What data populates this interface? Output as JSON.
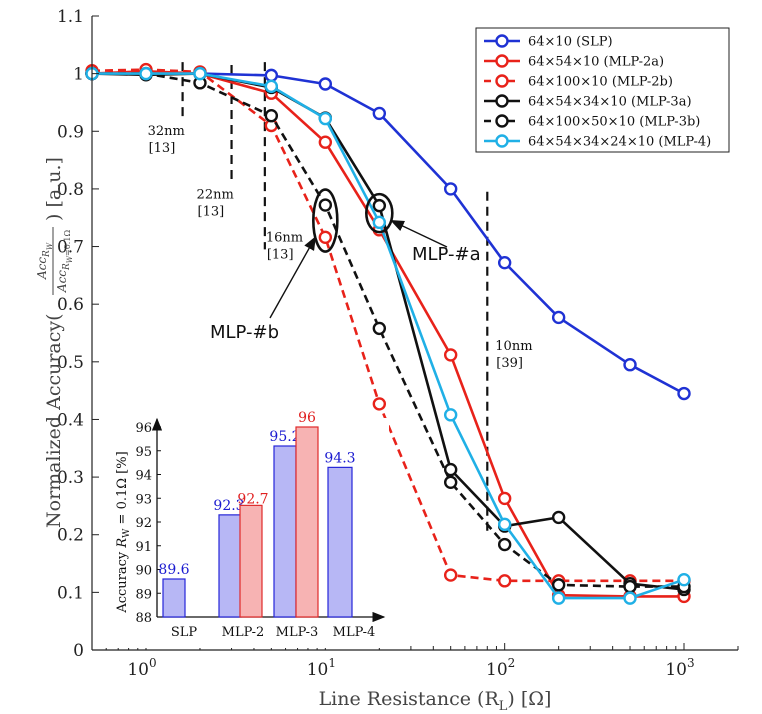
{
  "chart_data": {
    "type": "line",
    "x_scale": "log",
    "xlabel": "Line Resistance (R",
    "xlabel_sub": "L",
    "xlabel_tail": ") [Ω]",
    "ylabel_prefix": "Normalized Accuracy(",
    "ylabel_num": "Acc",
    "ylabel_num_sub": "R",
    "ylabel_num_subsub": "W",
    "ylabel_den": "Acc",
    "ylabel_den_sub": "R",
    "ylabel_den_subsub": "W",
    "ylabel_den_tail": "=0.1Ω",
    "ylabel_suffix": ") [a.u.]",
    "xlim": [
      0.5,
      2000
    ],
    "ylim": [
      0,
      1.1
    ],
    "x_ticks": [
      {
        "value": 1,
        "base": "10",
        "exp": "0"
      },
      {
        "value": 10,
        "base": "10",
        "exp": "1"
      },
      {
        "value": 100,
        "base": "10",
        "exp": "2"
      },
      {
        "value": 1000,
        "base": "10",
        "exp": "3"
      }
    ],
    "y_ticks": [
      {
        "value": 0,
        "label": "0"
      },
      {
        "value": 0.1,
        "label": "0.1"
      },
      {
        "value": 0.2,
        "label": "0.2"
      },
      {
        "value": 0.3,
        "label": "0.3"
      },
      {
        "value": 0.4,
        "label": "0.4"
      },
      {
        "value": 0.5,
        "label": "0.5"
      },
      {
        "value": 0.6,
        "label": "0.6"
      },
      {
        "value": 0.7,
        "label": "0.7"
      },
      {
        "value": 0.8,
        "label": "0.8"
      },
      {
        "value": 0.9,
        "label": "0.9"
      },
      {
        "value": 1,
        "label": "1"
      },
      {
        "value": 1.1,
        "label": "1.1"
      }
    ],
    "series": [
      {
        "name": "64×10 (SLP)",
        "color": "#1f32d4",
        "dashed": false,
        "x": [
          0.5,
          1,
          2,
          5,
          10,
          20,
          50,
          100,
          200,
          500,
          1000
        ],
        "y": [
          1.0,
          1.0,
          1.0,
          0.997,
          0.982,
          0.931,
          0.8,
          0.672,
          0.577,
          0.495,
          0.445
        ]
      },
      {
        "name": "64×54×10 (MLP-2a)",
        "color": "#e8221a",
        "dashed": false,
        "x": [
          0.5,
          1,
          2,
          5,
          10,
          20,
          50,
          100,
          200,
          500,
          1000
        ],
        "y": [
          1.0,
          1.004,
          1.0,
          0.966,
          0.881,
          0.729,
          0.512,
          0.263,
          0.095,
          0.093,
          0.093
        ]
      },
      {
        "name": "64×100×10 (MLP-2b)",
        "color": "#e8221a",
        "dashed": true,
        "x": [
          0.5,
          1,
          2,
          5,
          10,
          20,
          50,
          100,
          200,
          500,
          1000
        ],
        "y": [
          1.005,
          1.007,
          1.003,
          0.91,
          0.716,
          0.427,
          0.13,
          0.12,
          0.12,
          0.12,
          0.12
        ]
      },
      {
        "name": "64×54×34×10 (MLP-3a)",
        "color": "#111111",
        "dashed": false,
        "x": [
          0.5,
          1,
          2,
          5,
          10,
          20,
          50,
          100,
          200,
          500,
          1000
        ],
        "y": [
          1.0,
          0.998,
          1.0,
          0.976,
          0.923,
          0.771,
          0.313,
          0.215,
          0.23,
          0.115,
          0.105
        ]
      },
      {
        "name": "64×100×50×10 (MLP-3b)",
        "color": "#111111",
        "dashed": true,
        "x": [
          0.5,
          1,
          2,
          5,
          10,
          20,
          50,
          100,
          200,
          500,
          1000
        ],
        "y": [
          1.0,
          1.0,
          0.984,
          0.927,
          0.772,
          0.558,
          0.291,
          0.183,
          0.113,
          0.11,
          0.11
        ]
      },
      {
        "name": "64×54×34×24×10 (MLP-4)",
        "color": "#20b0e6",
        "dashed": false,
        "x": [
          0.5,
          1,
          2,
          5,
          10,
          20,
          50,
          100,
          200,
          500,
          1000
        ],
        "y": [
          1.0,
          1.0,
          1.0,
          0.978,
          0.922,
          0.742,
          0.408,
          0.218,
          0.09,
          0.09,
          0.122
        ]
      }
    ],
    "technode_markers": [
      {
        "x": 1.6,
        "y_top": 1.02,
        "y_bottom": 0.925,
        "label": "32nm",
        "ref": "[13]"
      },
      {
        "x": 3.0,
        "y_top": 1.015,
        "y_bottom": 0.815,
        "label": "22nm",
        "ref": "[13]"
      },
      {
        "x": 4.6,
        "y_top": 1.02,
        "y_bottom": 0.695,
        "label": "16nm",
        "ref": "[13]"
      },
      {
        "x": 80,
        "y_top": 0.795,
        "y_bottom": 0.205,
        "label": "10nm",
        "ref": "[39]"
      }
    ],
    "annotations": [
      {
        "text": "MLP-#a",
        "target_x": 20,
        "target_y": 0.77
      },
      {
        "text": "MLP-#b",
        "target_x": 10,
        "target_y": 0.745
      }
    ],
    "inset": {
      "type": "bar",
      "ylabel_prefix": "Accuracy ",
      "ylabel_var": "R",
      "ylabel_var_sub": "W",
      "ylabel_tail": " = 0.1Ω [%]",
      "ylim": [
        88,
        96
      ],
      "y_ticks": [
        "88",
        "89",
        "90",
        "91",
        "92",
        "93",
        "94",
        "95",
        "96"
      ],
      "categories": [
        "SLP",
        "MLP-2",
        "MLP-3",
        "MLP-4"
      ],
      "bars": [
        {
          "category": "SLP",
          "variant": "a",
          "value": 89.6,
          "label": "89.6"
        },
        {
          "category": "MLP-2",
          "variant": "a",
          "value": 92.3,
          "label": "92.3"
        },
        {
          "category": "MLP-2",
          "variant": "b",
          "value": 92.7,
          "label": "92.7"
        },
        {
          "category": "MLP-3",
          "variant": "a",
          "value": 95.2,
          "label": "95.2"
        },
        {
          "category": "MLP-3",
          "variant": "b",
          "value": 96,
          "label": "96"
        },
        {
          "category": "MLP-4",
          "variant": "a",
          "value": 94.3,
          "label": "94.3"
        }
      ],
      "colors": {
        "a_fill": "#b7b7f5",
        "a_stroke": "#2525d8",
        "a_label": "#1a1ad0",
        "b_fill": "#f7b3b3",
        "b_stroke": "#e02a2a",
        "b_label": "#e02020"
      }
    }
  }
}
